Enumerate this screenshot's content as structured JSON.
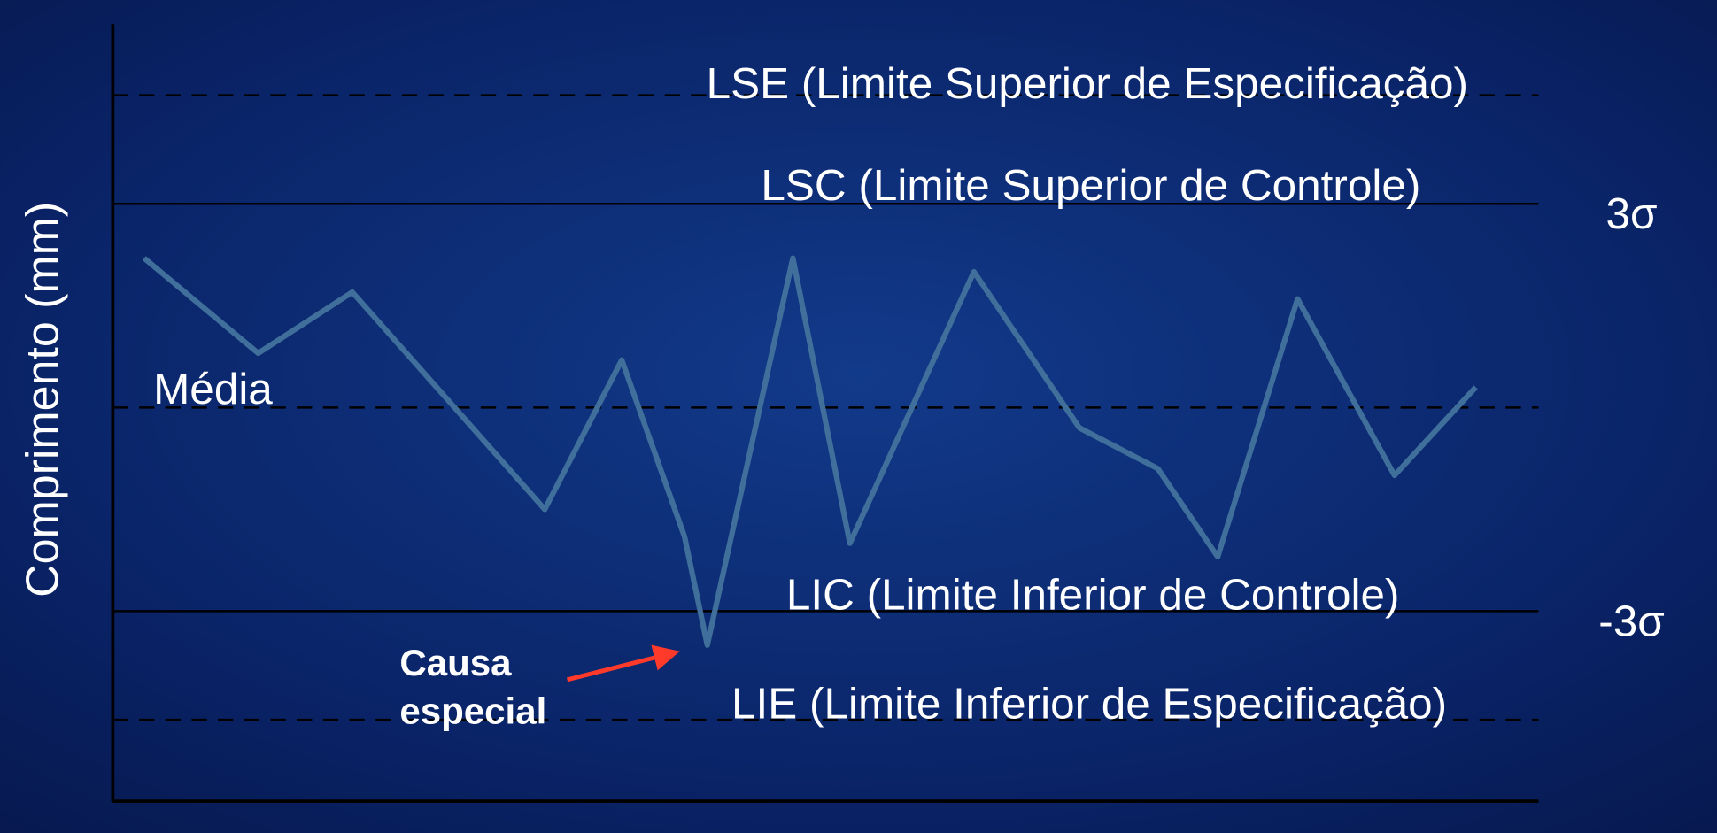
{
  "chart_data": {
    "type": "line",
    "y_label": "Comprimento (mm)",
    "x": [
      2.2,
      10.2,
      16.8,
      30.3,
      35.7,
      40.1,
      41.7,
      47.7,
      51.7,
      60.4,
      67.8,
      73.3,
      77.5,
      83.1,
      89.9,
      95.6
    ],
    "values": [
      2.2,
      0.8,
      1.7,
      -1.5,
      0.7,
      -1.9,
      -3.5,
      2.2,
      -2.0,
      2.0,
      -0.3,
      -0.9,
      -2.2,
      1.6,
      -1.0,
      0.3
    ],
    "color": "#3f6f9a",
    "xlim": [
      0,
      100
    ],
    "ylim": [
      -5.8,
      5.6
    ],
    "reference_lines": [
      {
        "label": "LSE (Limite Superior de Especificação)",
        "value": 4.6,
        "style": "dashed"
      },
      {
        "label": "LSC (Limite Superior de Controle)",
        "value": 3,
        "style": "solid",
        "side_label": "3σ"
      },
      {
        "label": "Média",
        "value": 0,
        "style": "dashed"
      },
      {
        "label": "LIC (Limite Inferior de Controle)",
        "value": -3,
        "style": "solid",
        "side_label": "-3σ"
      },
      {
        "label": "LIE (Limite Inferior de Especificação)",
        "value": -4.6,
        "style": "dashed"
      }
    ],
    "annotation": {
      "lines": [
        "Causa",
        "especial"
      ],
      "color": "#ff3a2a"
    }
  }
}
